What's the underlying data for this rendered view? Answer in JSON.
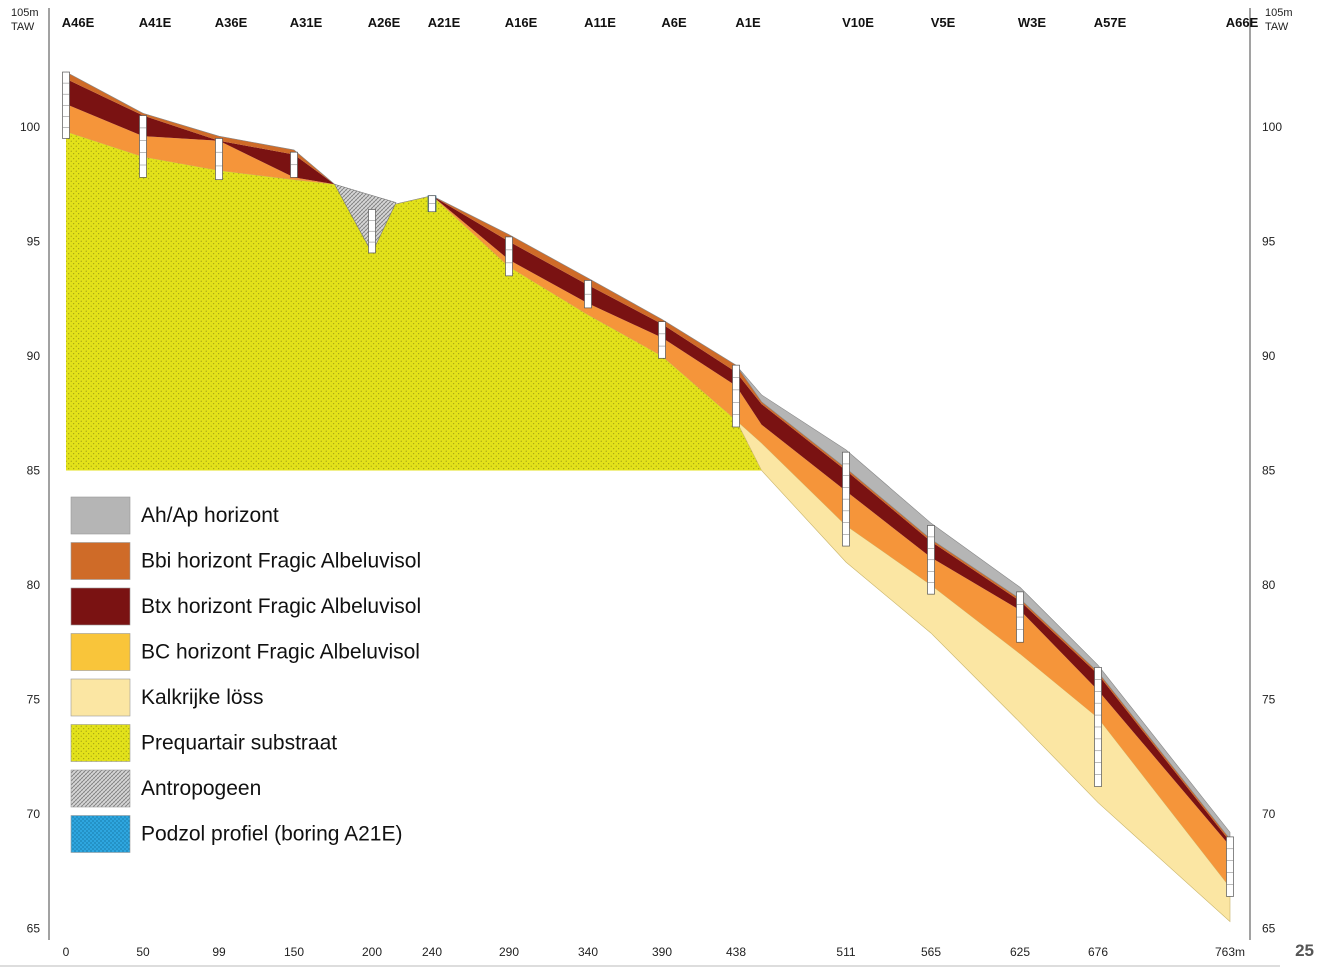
{
  "page_number": "25",
  "axis": {
    "unit_top_left": "105m",
    "datum_left": "TAW",
    "unit_top_right": "105m",
    "datum_right": "TAW",
    "y_ticks": [
      100,
      95,
      90,
      85,
      80,
      75,
      70,
      65
    ],
    "x_ticks": [
      "0",
      "50",
      "99",
      "150",
      "200",
      "240",
      "290",
      "340",
      "390",
      "438",
      "511",
      "565",
      "625",
      "676",
      "763m"
    ]
  },
  "colors": {
    "ah": "#b5b5b5",
    "bbi": "#cf6b28",
    "btx": "#7a1212",
    "bc": "#f5953a",
    "loess": "#fbe6a3",
    "substrate": "#e3e21a",
    "antropogeen": "#bdbdbd",
    "podzol": "#2ea6df"
  },
  "legend": [
    {
      "key": "ah",
      "label": "Ah/Ap horizont"
    },
    {
      "key": "bbi",
      "label": "Bbi horizont Fragic Albeluvisol"
    },
    {
      "key": "btx",
      "label": "Btx horizont Fragic Albeluvisol"
    },
    {
      "key": "bc",
      "label": "BC horizont Fragic Albeluvisol"
    },
    {
      "key": "loess",
      "label": "Kalkrijke löss"
    },
    {
      "key": "substrate",
      "label": "Prequartair substraat"
    },
    {
      "key": "antropogeen",
      "label": "Antropogeen"
    },
    {
      "key": "podzol",
      "label": "Podzol profiel (boring A21E)"
    }
  ],
  "borings": [
    {
      "name": "A46E",
      "dist": 0,
      "top": 102.4,
      "bottom": 99.5
    },
    {
      "name": "A41E",
      "dist": 50,
      "top": 100.5,
      "bottom": 97.8
    },
    {
      "name": "A36E",
      "dist": 99,
      "top": 99.5,
      "bottom": 97.7
    },
    {
      "name": "A31E",
      "dist": 150,
      "top": 98.9,
      "bottom": 97.8
    },
    {
      "name": "A26E",
      "dist": 200,
      "top": 96.4,
      "bottom": 94.5
    },
    {
      "name": "A21E",
      "dist": 240,
      "top": 97.0,
      "bottom": 96.3
    },
    {
      "name": "A16E",
      "dist": 290,
      "top": 95.2,
      "bottom": 93.5
    },
    {
      "name": "A11E",
      "dist": 340,
      "top": 93.3,
      "bottom": 92.1
    },
    {
      "name": "A6E",
      "dist": 390,
      "top": 91.5,
      "bottom": 89.9
    },
    {
      "name": "A1E",
      "dist": 438,
      "top": 89.6,
      "bottom": 86.9
    },
    {
      "name": "V10E",
      "dist": 511,
      "top": 85.8,
      "bottom": 81.7
    },
    {
      "name": "V5E",
      "dist": 565,
      "top": 82.6,
      "bottom": 79.6
    },
    {
      "name": "W3E",
      "dist": 625,
      "top": 79.7,
      "bottom": 77.5
    },
    {
      "name": "A57E",
      "dist": 676,
      "top": 76.4,
      "bottom": 71.2
    },
    {
      "name": "A66E",
      "dist": 763,
      "top": 69.0,
      "bottom": 66.4
    }
  ],
  "profile": {
    "x": [
      0,
      50,
      99,
      150,
      176,
      200,
      240,
      290,
      340,
      390,
      438,
      455,
      511,
      565,
      625,
      676,
      763
    ],
    "ah_top": [
      102.4,
      100.6,
      99.6,
      99.0,
      97.5,
      96.4,
      97.0,
      95.3,
      93.4,
      91.6,
      89.6,
      88.3,
      85.9,
      82.7,
      79.9,
      76.5,
      69.2
    ],
    "ah_bot": [
      102.4,
      100.6,
      99.6,
      99.0,
      97.5,
      96.4,
      97.0,
      95.3,
      93.4,
      91.6,
      89.6,
      88.0,
      85.1,
      82.0,
      79.4,
      76.2,
      68.9
    ],
    "bbi_bot": [
      102.1,
      100.5,
      99.4,
      98.8,
      97.5,
      96.4,
      97.0,
      95.0,
      93.1,
      91.4,
      89.3,
      87.9,
      85.0,
      81.9,
      79.3,
      76.1,
      68.8
    ],
    "btx_bot": [
      101.0,
      99.6,
      99.4,
      97.8,
      97.5,
      96.4,
      97.0,
      94.2,
      92.3,
      90.8,
      88.7,
      87.0,
      84.1,
      81.2,
      78.9,
      75.4,
      68.6
    ],
    "bc_bot": [
      99.8,
      98.7,
      98.1,
      97.7,
      97.5,
      96.4,
      97.0,
      93.9,
      91.8,
      90.0,
      87.2,
      86.2,
      82.6,
      80.0,
      77.0,
      74.2,
      66.8
    ],
    "loess_bot": [
      99.8,
      98.7,
      98.1,
      97.7,
      97.5,
      96.4,
      97.0,
      93.9,
      91.8,
      90.0,
      87.2,
      85.0,
      81.0,
      77.9,
      74.0,
      70.5,
      65.3
    ]
  },
  "substrate_base": 85,
  "antropogeen": {
    "x": [
      176,
      200,
      216
    ],
    "y": [
      97.5,
      94.5,
      96.7
    ]
  },
  "podzol_fill": {
    "dist": 240,
    "top": 97.0,
    "bottom": 96.3
  }
}
